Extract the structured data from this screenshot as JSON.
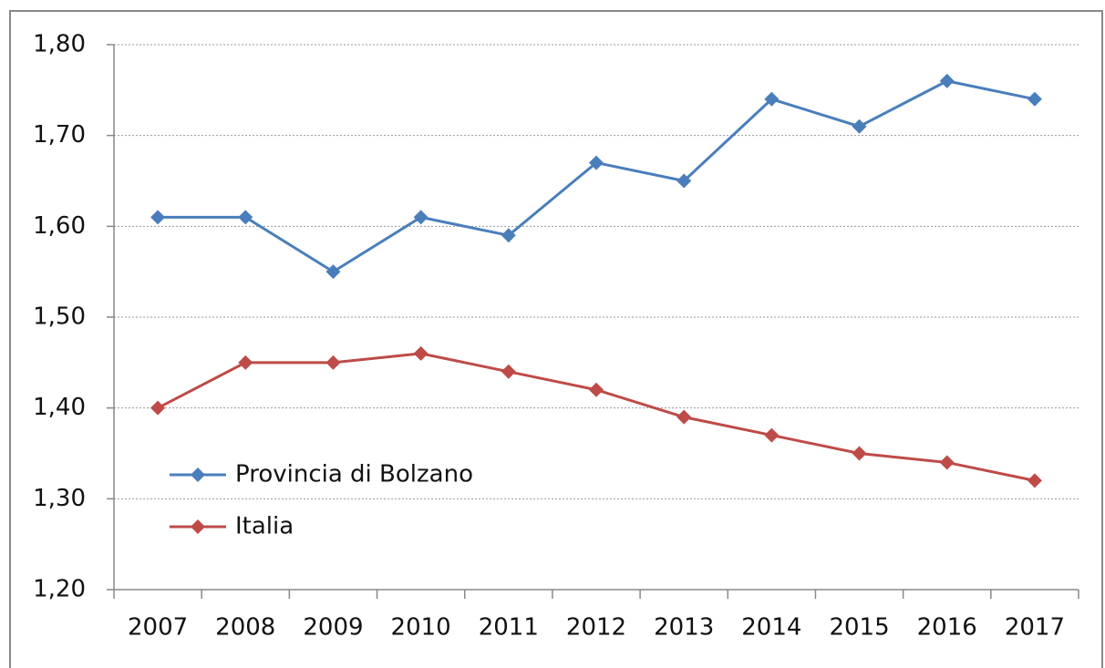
{
  "chart_data": {
    "type": "line",
    "categories": [
      "2007",
      "2008",
      "2009",
      "2010",
      "2011",
      "2012",
      "2013",
      "2014",
      "2015",
      "2016",
      "2017"
    ],
    "series": [
      {
        "name": "Provincia di Bolzano",
        "color": "#4a7ebb",
        "values": [
          1.61,
          1.61,
          1.55,
          1.61,
          1.59,
          1.67,
          1.65,
          1.74,
          1.71,
          1.76,
          1.74
        ]
      },
      {
        "name": "Italia",
        "color": "#be4b48",
        "values": [
          1.4,
          1.45,
          1.45,
          1.46,
          1.44,
          1.42,
          1.39,
          1.37,
          1.35,
          1.34,
          1.32
        ]
      }
    ],
    "ylim": [
      1.2,
      1.8
    ],
    "yticks": [
      {
        "value": 1.2,
        "label": "1,20"
      },
      {
        "value": 1.3,
        "label": "1,30"
      },
      {
        "value": 1.4,
        "label": "1,40"
      },
      {
        "value": 1.5,
        "label": "1,50"
      },
      {
        "value": 1.6,
        "label": "1,60"
      },
      {
        "value": 1.7,
        "label": "1,70"
      },
      {
        "value": 1.8,
        "label": "1,80"
      }
    ],
    "grid": true,
    "legend": "lower-left"
  }
}
